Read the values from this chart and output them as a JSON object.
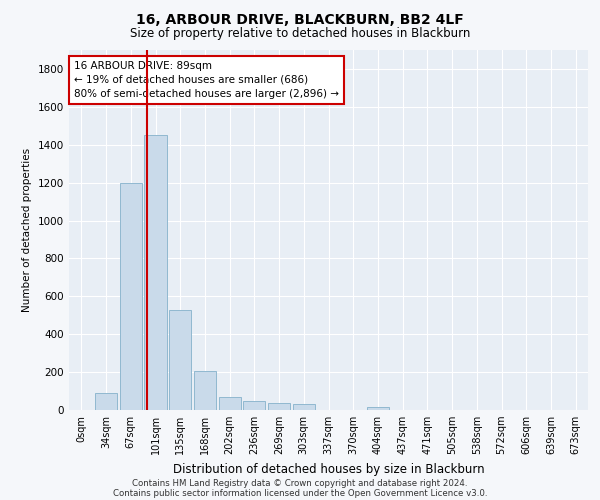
{
  "title": "16, ARBOUR DRIVE, BLACKBURN, BB2 4LF",
  "subtitle": "Size of property relative to detached houses in Blackburn",
  "xlabel": "Distribution of detached houses by size in Blackburn",
  "ylabel": "Number of detached properties",
  "bar_color": "#c9daea",
  "bar_edge_color": "#90b8d0",
  "background_color": "#e8eef5",
  "grid_color": "#ffffff",
  "fig_background": "#f5f7fa",
  "categories": [
    "0sqm",
    "34sqm",
    "67sqm",
    "101sqm",
    "135sqm",
    "168sqm",
    "202sqm",
    "236sqm",
    "269sqm",
    "303sqm",
    "337sqm",
    "370sqm",
    "404sqm",
    "437sqm",
    "471sqm",
    "505sqm",
    "538sqm",
    "572sqm",
    "606sqm",
    "639sqm",
    "673sqm"
  ],
  "values": [
    0,
    90,
    1200,
    1450,
    530,
    205,
    70,
    50,
    38,
    30,
    0,
    0,
    15,
    0,
    0,
    0,
    0,
    0,
    0,
    0,
    0
  ],
  "ylim": [
    0,
    1900
  ],
  "yticks": [
    0,
    200,
    400,
    600,
    800,
    1000,
    1200,
    1400,
    1600,
    1800
  ],
  "vline_x": 2.65,
  "vline_color": "#cc0000",
  "annotation_text": "16 ARBOUR DRIVE: 89sqm\n← 19% of detached houses are smaller (686)\n80% of semi-detached houses are larger (2,896) →",
  "annotation_box_edge": "#cc0000",
  "footer1": "Contains HM Land Registry data © Crown copyright and database right 2024.",
  "footer2": "Contains public sector information licensed under the Open Government Licence v3.0."
}
